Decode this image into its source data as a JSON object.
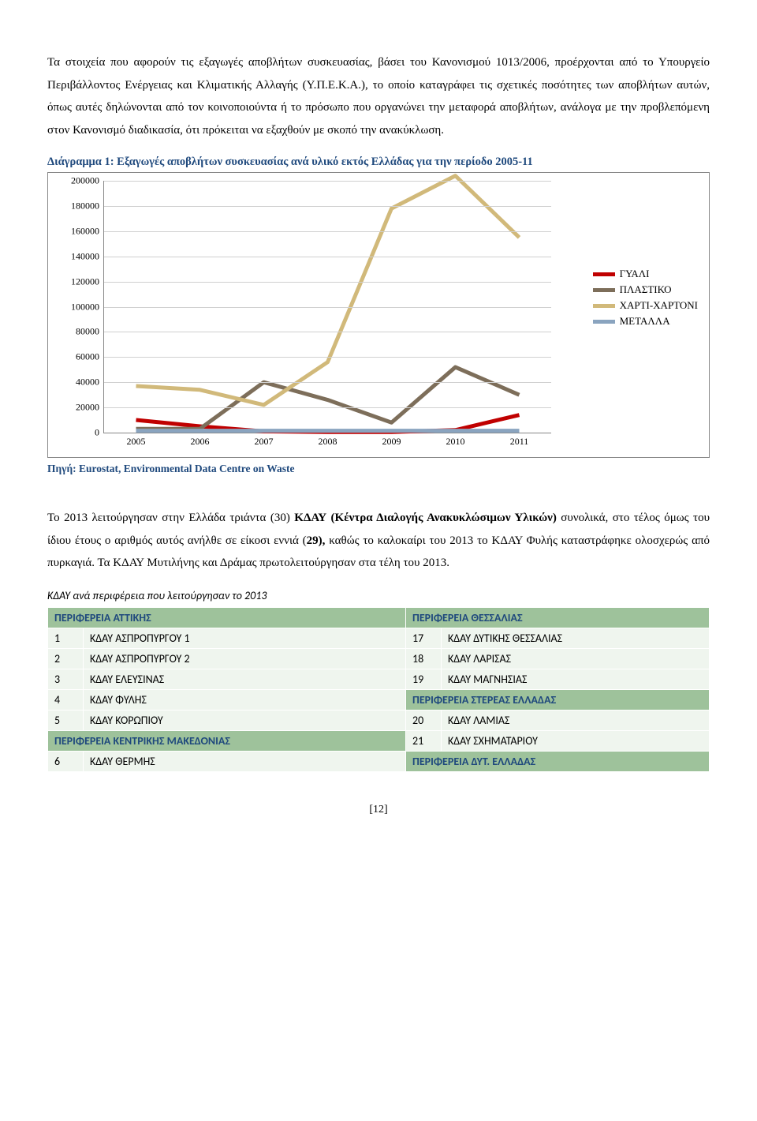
{
  "para1": "Τα στοιχεία που αφορούν τις εξαγωγές αποβλήτων συσκευασίας, βάσει του Κανονισμού 1013/2006, προέρχονται από το Υπουργείο Περιβάλλοντος Ενέργειας και Κλιματικής Αλλαγής (Υ.Π.Ε.Κ.Α.), το οποίο καταγράφει τις σχετικές ποσότητες των αποβλήτων αυτών, όπως αυτές δηλώνονται από τον κοινοποιούντα ή το πρόσωπο που οργανώνει την μεταφορά αποβλήτων, ανάλογα με την προβλεπόμενη στον Κανονισμό διαδικασία, ότι πρόκειται να εξαχθούν με σκοπό την ανακύκλωση.",
  "chart": {
    "title": "Διάγραμμα 1: Εξαγωγές αποβλήτων συσκευασίας ανά υλικό εκτός Ελλάδας για την περίοδο 2005-11",
    "source": "Πηγή: Eurostat, Environmental Data Centre on Waste",
    "ymin": 0,
    "ymax": 200000,
    "ystep": 20000,
    "years": [
      2005,
      2006,
      2007,
      2008,
      2009,
      2010,
      2011
    ],
    "series": [
      {
        "name": "ΓΥΑΛΙ",
        "color": "#c00000",
        "width": 5,
        "values": [
          10000,
          5000,
          1000,
          500,
          500,
          2000,
          14000
        ]
      },
      {
        "name": "ΠΛΑΣΤΙΚΟ",
        "color": "#7d6e5a",
        "width": 5,
        "values": [
          3000,
          3000,
          40000,
          26000,
          8000,
          52000,
          30000
        ]
      },
      {
        "name": "ΧΑΡΤΙ-ΧΑΡΤΟΝΙ",
        "color": "#d1b97a",
        "width": 5,
        "values": [
          37000,
          34000,
          22000,
          56000,
          178000,
          204000,
          155000
        ]
      },
      {
        "name": "ΜΕΤΑΛΛΑ",
        "color": "#8aa4bf",
        "width": 5,
        "values": [
          1500,
          1500,
          1500,
          1500,
          1500,
          1500,
          1500
        ]
      }
    ],
    "grid_color": "#d0d0d0",
    "bg": "#ffffff"
  },
  "para2_prefix": "Το 2013 λειτούργησαν στην Ελλάδα τριάντα (30) ",
  "para2_bold1": "ΚΔΑΥ (Κέντρα Διαλογής Ανακυκλώσιμων Υλικών)",
  "para2_mid1": " συνολικά, στο τέλος όμως του ίδιου έτους ο αριθμός αυτός ανήλθε σε είκοσι εννιά (",
  "para2_bold2": "29),",
  "para2_mid2": " καθώς το καλοκαίρι του 2013 το ΚΔΑΥ Φυλής καταστράφηκε ολοσχερώς από πυρκαγιά. Τα ΚΔΑΥ Μυτιλήνης και Δράμας πρωτολειτούργησαν στα τέλη του 2013.",
  "table_caption": "ΚΔΑΥ ανά περιφέρεια που λειτούργησαν το  2013",
  "regions": {
    "attiki": "ΠΕΡΙΦΕΡΕΙΑ ΑΤΤΙΚΗΣ",
    "thessalia": "ΠΕΡΙΦΕΡΕΙΑ ΘΕΣΣΑΛΙΑΣ",
    "kmakedonia": "ΠΕΡΙΦΕΡΕΙΑ ΚΕΝΤΡΙΚΗΣ ΜΑΚΕΔΟΝΙΑΣ",
    "sterea": "ΠΕΡΙΦΕΡΕΙΑ ΣΤΕΡΕΑΣ ΕΛΛΑΔΑΣ",
    "dyt": "ΠΕΡΙΦΕΡΕΙΑ ΔΥΤ. ΕΛΛΑΔΑΣ"
  },
  "rows": {
    "r1l": "ΚΔΑΥ ΑΣΠΡΟΠΥΡΓΟΥ 1",
    "r1r": "ΚΔΑΥ ΔΥΤΙΚΗΣ ΘΕΣΣΑΛΙΑΣ",
    "r2l": "ΚΔΑΥ ΑΣΠΡΟΠΥΡΓΟΥ 2",
    "r2r": "ΚΔΑΥ ΛΑΡΙΣΑΣ",
    "r3l": "ΚΔΑΥ ΕΛΕΥΣΙΝΑΣ",
    "r3r": "ΚΔΑΥ ΜΑΓΝΗΣΙΑΣ",
    "r4l": "ΚΔΑΥ ΦΥΛΗΣ",
    "r5l": "ΚΔΑΥ ΚΟΡΩΠΙΟΥ",
    "r5r": "ΚΔΑΥ ΛΑΜΙΑΣ",
    "r6r": "ΚΔΑΥ ΣΧΗΜΑΤΑΡΙΟΥ",
    "r7l": "ΚΔΑΥ ΘΕΡΜΗΣ"
  },
  "nums": {
    "n1": "1",
    "n2": "2",
    "n3": "3",
    "n4": "4",
    "n5": "5",
    "n6": "6",
    "n17": "17",
    "n18": "18",
    "n19": "19",
    "n20": "20",
    "n21": "21"
  },
  "page_num": "[12]"
}
